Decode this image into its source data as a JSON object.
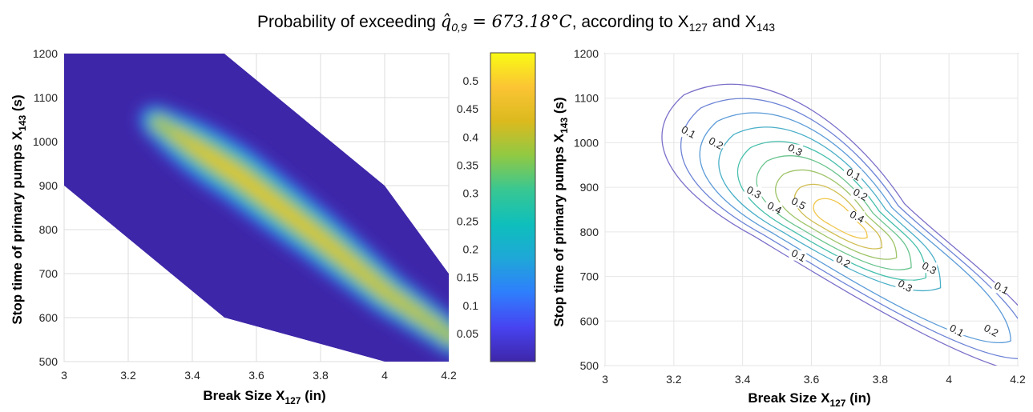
{
  "figure": {
    "title_prefix": "Probability of exceeding ",
    "title_math": "q̂",
    "title_math_sub": "0,9",
    "title_value": " = 673.18°C",
    "title_suffix": ", according to  X",
    "title_sub1": "127",
    "title_and": " and X",
    "title_sub2": "143"
  },
  "chart_data": [
    {
      "type": "heatmap",
      "title": "",
      "xlabel_main": "Break Size X",
      "xlabel_sub": "127",
      "xlabel_unit": " (in)",
      "ylabel_main": "Stop time of primary pumps  X",
      "ylabel_sub": "143",
      "ylabel_unit": " (s)",
      "xlim": [
        3,
        4.2
      ],
      "ylim": [
        500,
        1200
      ],
      "xticks": [
        "3",
        "3.2",
        "3.4",
        "3.6",
        "3.8",
        "4",
        "4.2"
      ],
      "yticks": [
        "500",
        "600",
        "700",
        "800",
        "900",
        "1000",
        "1100",
        "1200"
      ],
      "domain_polygon": [
        [
          3,
          1200
        ],
        [
          3.5,
          1200
        ],
        [
          4,
          900
        ],
        [
          4.2,
          700
        ],
        [
          4.2,
          500
        ],
        [
          4,
          500
        ],
        [
          3.5,
          600
        ],
        [
          3,
          900
        ]
      ],
      "peak": {
        "x": 3.55,
        "y": 920,
        "value": 0.54
      },
      "ridge": [
        [
          3.3,
          1040
        ],
        [
          3.55,
          920
        ],
        [
          3.8,
          780
        ],
        [
          4.0,
          660
        ],
        [
          4.2,
          560
        ]
      ],
      "colorbar": {
        "range": [
          0,
          0.55
        ],
        "ticks": [
          "0.05",
          "0.1",
          "0.15",
          "0.2",
          "0.25",
          "0.3",
          "0.35",
          "0.4",
          "0.45",
          "0.5"
        ],
        "colormap": [
          "#3e26a8",
          "#4743f1",
          "#2f7efd",
          "#1fa7d8",
          "#0ebfbc",
          "#38c793",
          "#90c944",
          "#dbba1e",
          "#fbc434",
          "#f9fb14"
        ]
      },
      "grid": true
    },
    {
      "type": "contour",
      "title": "",
      "xlabel_main": "Break Size X",
      "xlabel_sub": "127",
      "xlabel_unit": " (in)",
      "ylabel_main": "Stop time of primary pumps  X",
      "ylabel_sub": "143",
      "ylabel_unit": " (s)",
      "xlim": [
        3,
        4.2
      ],
      "ylim": [
        500,
        1200
      ],
      "xticks": [
        "3",
        "3.2",
        "3.4",
        "3.6",
        "3.8",
        "4",
        "4.2"
      ],
      "yticks": [
        "500",
        "600",
        "700",
        "800",
        "900",
        "1000",
        "1100",
        "1200"
      ],
      "levels": [
        0.1,
        0.15,
        0.2,
        0.25,
        0.3,
        0.35,
        0.4,
        0.45,
        0.5
      ],
      "contour_labels": [
        {
          "text": "0.1",
          "x": 3.24,
          "y": 1020
        },
        {
          "text": "0.2",
          "x": 3.32,
          "y": 995
        },
        {
          "text": "0.3",
          "x": 3.55,
          "y": 980
        },
        {
          "text": "0.1",
          "x": 3.72,
          "y": 925
        },
        {
          "text": "0.2",
          "x": 3.74,
          "y": 880
        },
        {
          "text": "0.3",
          "x": 3.43,
          "y": 885
        },
        {
          "text": "0.4",
          "x": 3.49,
          "y": 850
        },
        {
          "text": "0.5",
          "x": 3.56,
          "y": 860
        },
        {
          "text": "0.4",
          "x": 3.73,
          "y": 830
        },
        {
          "text": "0.1",
          "x": 3.56,
          "y": 743
        },
        {
          "text": "0.2",
          "x": 3.69,
          "y": 730
        },
        {
          "text": "0.3",
          "x": 3.94,
          "y": 715
        },
        {
          "text": "0.3",
          "x": 3.87,
          "y": 675
        },
        {
          "text": "0.1",
          "x": 4.15,
          "y": 670
        },
        {
          "text": "0.1",
          "x": 4.02,
          "y": 575
        },
        {
          "text": "0.2",
          "x": 4.12,
          "y": 575
        }
      ],
      "colors": [
        "#7a6fc9",
        "#6d84d6",
        "#5b9bd8",
        "#4aafc8",
        "#46bfac",
        "#6ac48e",
        "#9fc46a",
        "#d0be52",
        "#f0c64a"
      ],
      "grid": true
    }
  ]
}
